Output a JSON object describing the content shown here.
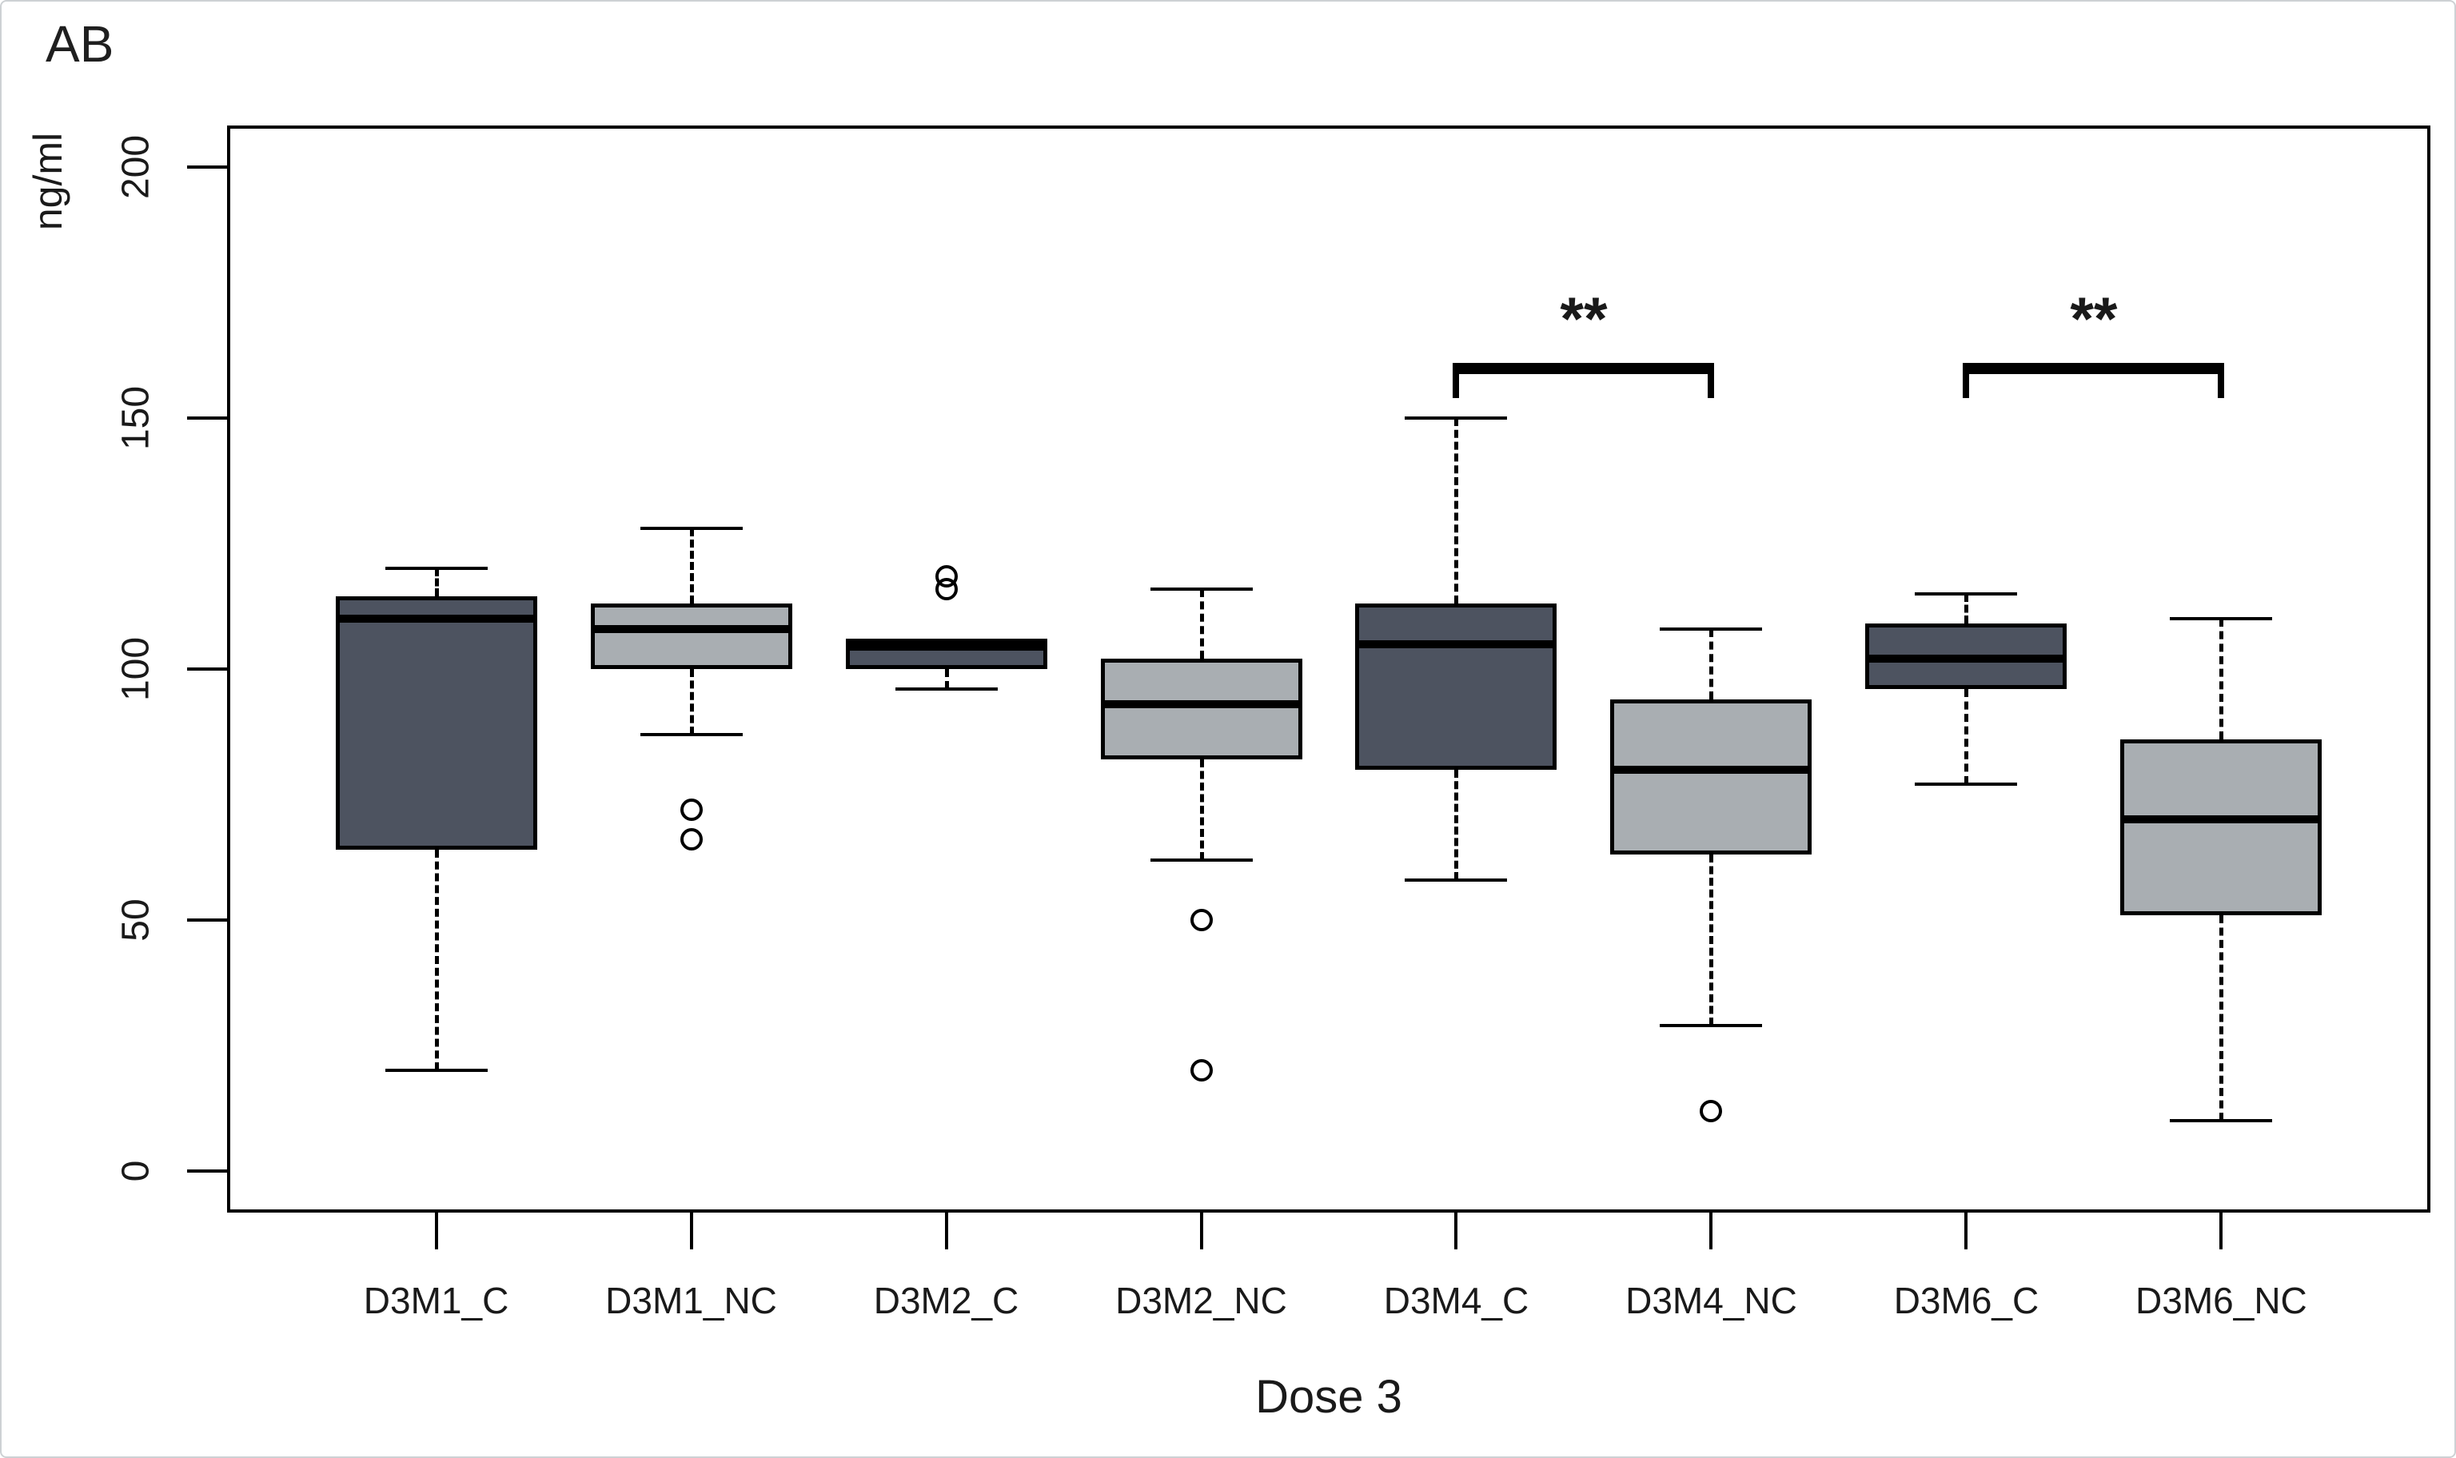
{
  "chart_data": {
    "type": "boxplot",
    "title": "AB",
    "ylabel": "ng/ml",
    "xlabel": "Dose 3",
    "y_ticks": [
      0,
      50,
      100,
      150,
      200
    ],
    "ylim": [
      -8.3,
      208.3
    ],
    "grid": false,
    "categories": [
      "D3M1_C",
      "D3M1_NC",
      "D3M2_C",
      "D3M2_NC",
      "D3M4_C",
      "D3M4_NC",
      "D3M6_C",
      "D3M6_NC"
    ],
    "boxes": [
      {
        "label": "D3M1_C",
        "group": "C",
        "whisker_low": 20,
        "q1": 64,
        "median": 110,
        "q3": 114.5,
        "whisker_high": 120,
        "outliers": []
      },
      {
        "label": "D3M1_NC",
        "group": "NC",
        "whisker_low": 87,
        "q1": 100,
        "median": 108,
        "q3": 113,
        "whisker_high": 128,
        "outliers": [
          72,
          66
        ]
      },
      {
        "label": "D3M2_C",
        "group": "C",
        "whisker_low": 96,
        "q1": 100,
        "median": 104.5,
        "q3": 106,
        "whisker_high": 106,
        "outliers": [
          118.5,
          116
        ]
      },
      {
        "label": "D3M2_NC",
        "group": "NC",
        "whisker_low": 62,
        "q1": 82,
        "median": 93,
        "q3": 102,
        "whisker_high": 116,
        "outliers": [
          50,
          20
        ]
      },
      {
        "label": "D3M4_C",
        "group": "C",
        "whisker_low": 58,
        "q1": 80,
        "median": 105,
        "q3": 113,
        "whisker_high": 150,
        "outliers": []
      },
      {
        "label": "D3M4_NC",
        "group": "NC",
        "whisker_low": 29,
        "q1": 63,
        "median": 80,
        "q3": 94,
        "whisker_high": 108,
        "outliers": [
          12
        ]
      },
      {
        "label": "D3M6_C",
        "group": "C",
        "whisker_low": 77,
        "q1": 96,
        "median": 102,
        "q3": 109,
        "whisker_high": 115,
        "outliers": []
      },
      {
        "label": "D3M6_NC",
        "group": "NC",
        "whisker_low": 10,
        "q1": 51,
        "median": 70,
        "q3": 86,
        "whisker_high": 110,
        "outliers": []
      }
    ],
    "significance": [
      {
        "from_index": 4,
        "to_index": 5,
        "label": "**",
        "bar_value": 161,
        "leg_bottom_value": 154
      },
      {
        "from_index": 6,
        "to_index": 7,
        "label": "**",
        "bar_value": 161,
        "leg_bottom_value": 154
      }
    ],
    "legend_position": "none"
  },
  "colors": {
    "box_fill_C": "#4d5360",
    "box_fill_NC": "#a9aeb2",
    "line": "#000000",
    "text": "#1a1a1a",
    "background": "#ffffff",
    "outer_border": "#cdd1d4"
  }
}
